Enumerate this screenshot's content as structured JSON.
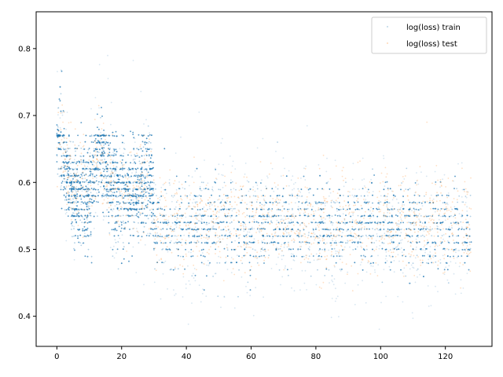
{
  "chart_data": {
    "type": "scatter",
    "title": "",
    "xlabel": "",
    "ylabel": "",
    "xlim": [
      -6.4,
      134.4
    ],
    "ylim": [
      0.355,
      0.855
    ],
    "xticks": [
      0,
      20,
      40,
      60,
      80,
      100,
      120
    ],
    "xtick_labels": [
      "0",
      "20",
      "40",
      "60",
      "80",
      "100",
      "120"
    ],
    "yticks": [
      0.4,
      0.5,
      0.6,
      0.7,
      0.8
    ],
    "ytick_labels": [
      "0.4",
      "0.5",
      "0.6",
      "0.7",
      "0.8"
    ],
    "grid": false,
    "legend_position": "top-right",
    "x_range": [
      0,
      128
    ],
    "series": [
      {
        "name": "log(loss) train",
        "color": "#1f77b4",
        "alpha": 0.15,
        "description_of_shape": "dense quantized horizontal bands; early x (0-30) spread ~0.5-0.8 with peaks near x=0, 13, 28; beyond x=30 bands at levels below",
        "band_levels": [
          0.43,
          0.44,
          0.45,
          0.46,
          0.47,
          0.48,
          0.49,
          0.5,
          0.51,
          0.52,
          0.53,
          0.54,
          0.55,
          0.56,
          0.57,
          0.58,
          0.59,
          0.6,
          0.61,
          0.62,
          0.63,
          0.64,
          0.65,
          0.66,
          0.67
        ]
      },
      {
        "name": "log(loss) test",
        "color": "#ff7f0e",
        "alpha": 0.15,
        "description_of_shape": "sparse points overlapping train distribution, mostly 0.5-0.65"
      }
    ],
    "axes_frame_color": "#000000"
  }
}
